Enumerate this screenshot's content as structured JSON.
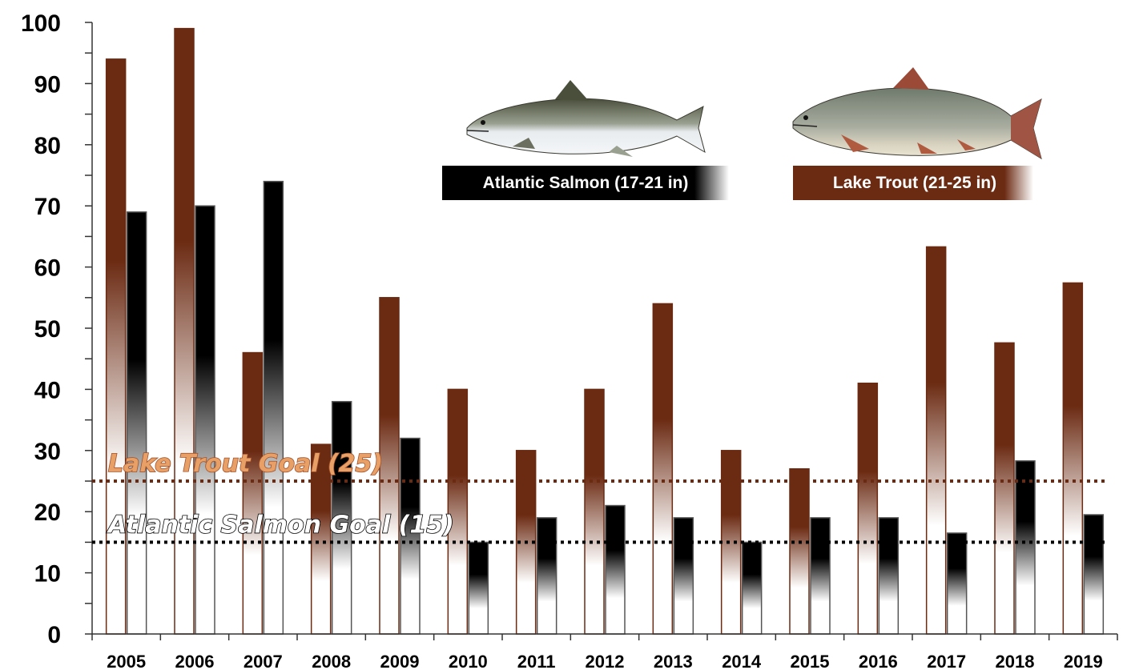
{
  "chart_data": {
    "type": "bar",
    "categories": [
      "2005",
      "2006",
      "2007",
      "2008",
      "2009",
      "2010",
      "2011",
      "2012",
      "2013",
      "2014",
      "2015",
      "2016",
      "2017",
      "2018",
      "2019"
    ],
    "series": [
      {
        "name": "Lake Trout (21-25 in)",
        "color": "#6b2a12",
        "values": [
          94,
          99,
          46,
          31,
          55,
          40,
          30,
          40,
          54,
          30,
          27,
          41,
          63.3,
          47.6,
          57.4
        ]
      },
      {
        "name": "Atlantic Salmon (17-21 in)",
        "color": "#000000",
        "values": [
          69,
          70,
          74,
          38,
          32,
          15,
          19,
          21,
          19,
          15,
          19,
          19,
          16.5,
          28.3,
          19.5
        ]
      }
    ],
    "ylim": [
      0,
      100
    ],
    "yticks": [
      0,
      10,
      20,
      30,
      40,
      50,
      60,
      70,
      80,
      90,
      100
    ],
    "goals": [
      {
        "label": "Lake Trout Goal (25)",
        "value": 25,
        "color": "#6b2a12",
        "text_fill": "#e8a066"
      },
      {
        "label": "Atlantic Salmon Goal (15)",
        "value": 15,
        "color": "#000000",
        "text_fill": "#ffffff"
      }
    ],
    "grid": false,
    "legend_position": "top-center"
  },
  "legend": {
    "salmon_label": "Atlantic Salmon (17-21 in)",
    "trout_label": "Lake Trout (21-25 in)",
    "salmon_icon": "atlantic-salmon-icon",
    "trout_icon": "lake-trout-icon"
  }
}
